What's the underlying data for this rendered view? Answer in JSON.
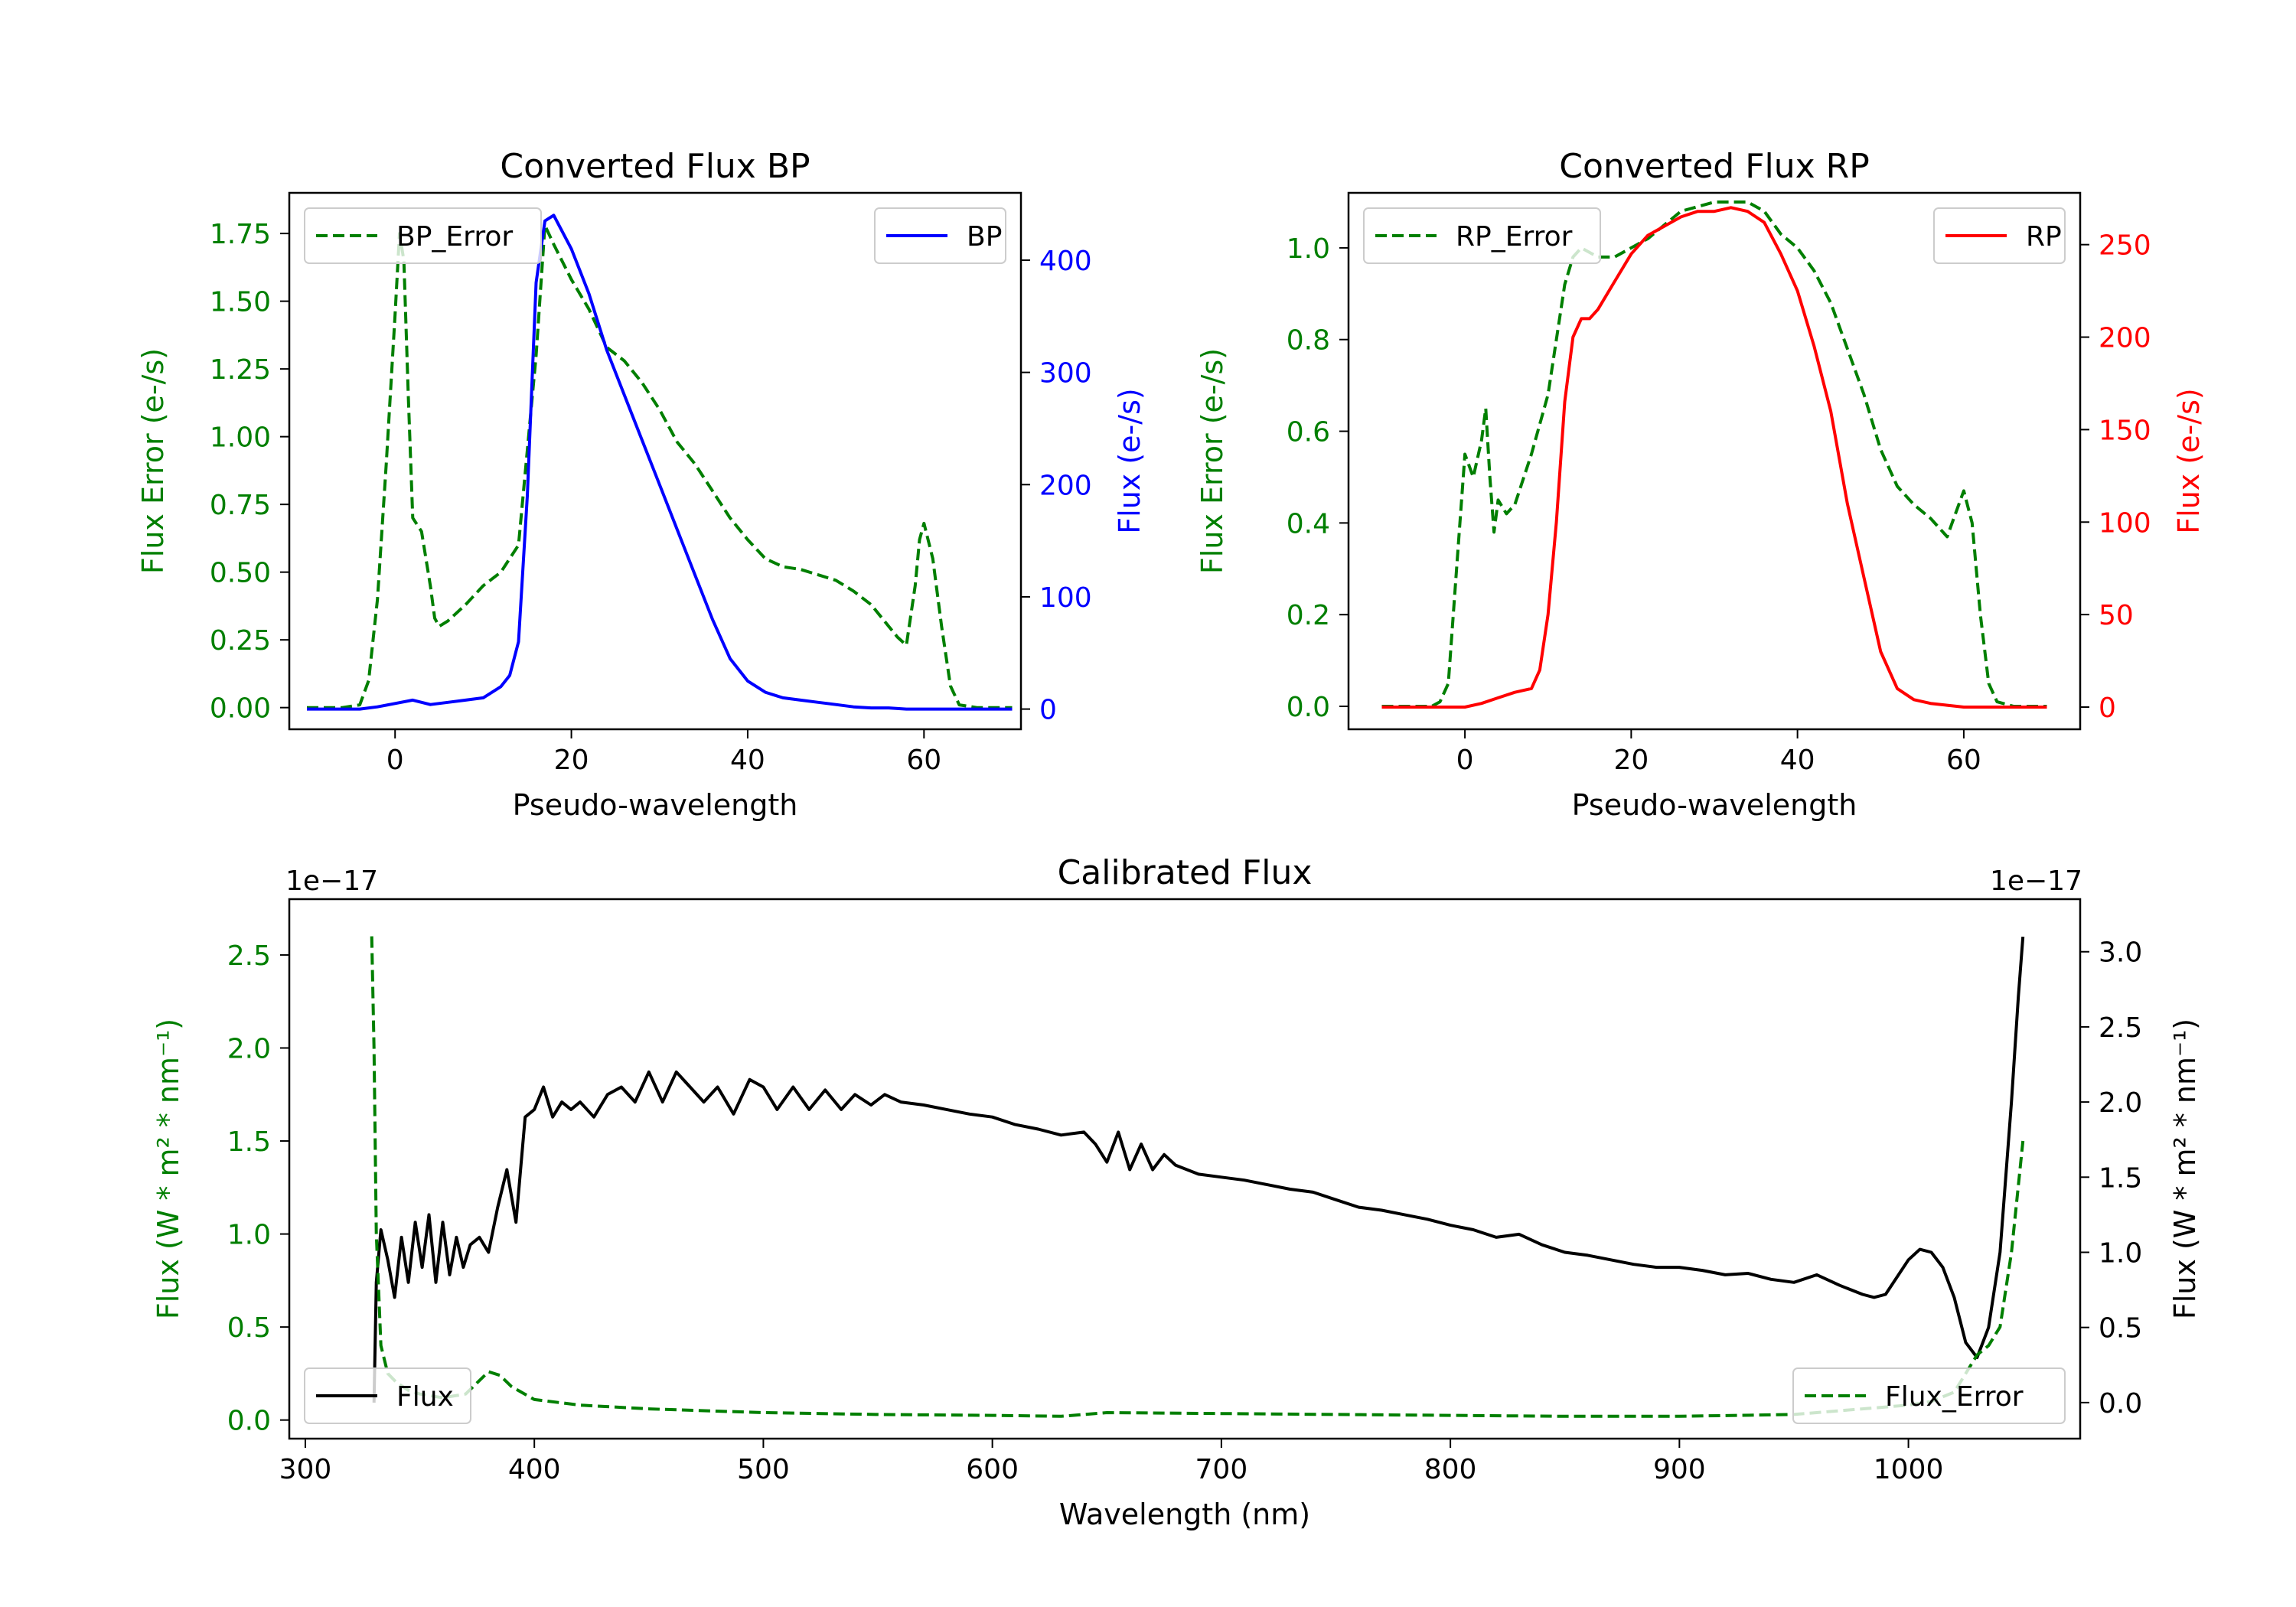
{
  "colors": {
    "green": "#007f00",
    "blue": "#0000ff",
    "red": "#ff0000",
    "black": "#000000"
  },
  "chart_data": [
    {
      "type": "line",
      "title": "Converted Flux BP",
      "xlabel": "Pseudo-wavelength",
      "ylabel_left": "Flux Error (e-/s)",
      "ylabel_right": "Flux (e-/s)",
      "xlim": [
        -12,
        71
      ],
      "ylim_left": [
        -0.08,
        1.9
      ],
      "ylim_right": [
        -18,
        460
      ],
      "x_ticks": [
        0,
        20,
        40,
        60
      ],
      "y_ticks_left": [
        0.0,
        0.25,
        0.5,
        0.75,
        1.0,
        1.25,
        1.5,
        1.75
      ],
      "y_ticks_left_labels": [
        "0.00",
        "0.25",
        "0.50",
        "0.75",
        "1.00",
        "1.25",
        "1.50",
        "1.75"
      ],
      "y_ticks_right": [
        0,
        100,
        200,
        300,
        400
      ],
      "y_ticks_right_labels": [
        "0",
        "100",
        "200",
        "300",
        "400"
      ],
      "legend_left": "top-left",
      "legend_right": "top-right",
      "series": [
        {
          "name": "BP_Error",
          "axis": "left",
          "style": "dashed",
          "color": "#007f00",
          "x": [
            -10,
            -6,
            -4,
            -3,
            -2,
            -1,
            0,
            0.5,
            1,
            1.5,
            2,
            3,
            4,
            4.5,
            5,
            6,
            7,
            8,
            10,
            12,
            14,
            16,
            17,
            18,
            20,
            22,
            24,
            26,
            28,
            30,
            32,
            34,
            36,
            38,
            40,
            42,
            44,
            46,
            48,
            50,
            52,
            54,
            56,
            57,
            58,
            59,
            59.5,
            60,
            61,
            62,
            63,
            64,
            66,
            70
          ],
          "y": [
            0,
            0,
            0.01,
            0.1,
            0.4,
            0.9,
            1.45,
            1.75,
            1.65,
            1.15,
            0.7,
            0.65,
            0.45,
            0.33,
            0.3,
            0.32,
            0.35,
            0.38,
            0.45,
            0.5,
            0.6,
            1.3,
            1.78,
            1.71,
            1.58,
            1.47,
            1.33,
            1.28,
            1.2,
            1.1,
            0.98,
            0.9,
            0.8,
            0.7,
            0.62,
            0.55,
            0.52,
            0.51,
            0.49,
            0.47,
            0.43,
            0.38,
            0.3,
            0.26,
            0.23,
            0.45,
            0.62,
            0.68,
            0.55,
            0.3,
            0.08,
            0.01,
            0,
            0
          ]
        },
        {
          "name": "BP",
          "axis": "right",
          "style": "solid",
          "color": "#0000ff",
          "x": [
            -10,
            -6,
            -4,
            -2,
            0,
            2,
            4,
            6,
            8,
            10,
            12,
            13,
            14,
            15,
            16,
            17,
            18,
            20,
            22,
            24,
            26,
            28,
            30,
            32,
            34,
            36,
            38,
            40,
            42,
            44,
            46,
            48,
            50,
            52,
            54,
            56,
            58,
            60,
            62,
            66,
            70
          ],
          "y": [
            0,
            0,
            0,
            2,
            5,
            8,
            4,
            6,
            8,
            10,
            20,
            30,
            60,
            190,
            380,
            435,
            440,
            410,
            370,
            320,
            280,
            240,
            200,
            160,
            120,
            80,
            45,
            25,
            15,
            10,
            8,
            6,
            4,
            2,
            1,
            1,
            0,
            0,
            0,
            0,
            0
          ]
        }
      ]
    },
    {
      "type": "line",
      "title": "Converted Flux RP",
      "xlabel": "Pseudo-wavelength",
      "ylabel_left": "Flux Error (e-/s)",
      "ylabel_right": "Flux (e-/s)",
      "xlim": [
        -14,
        74
      ],
      "ylim_left": [
        -0.05,
        1.12
      ],
      "ylim_right": [
        -12,
        278
      ],
      "x_ticks": [
        0,
        20,
        40,
        60
      ],
      "y_ticks_left": [
        0.0,
        0.2,
        0.4,
        0.6,
        0.8,
        1.0
      ],
      "y_ticks_left_labels": [
        "0.0",
        "0.2",
        "0.4",
        "0.6",
        "0.8",
        "1.0"
      ],
      "y_ticks_right": [
        0,
        50,
        100,
        150,
        200,
        250
      ],
      "y_ticks_right_labels": [
        "0",
        "50",
        "100",
        "150",
        "200",
        "250"
      ],
      "legend_left": "top-left",
      "legend_right": "top-right",
      "series": [
        {
          "name": "RP_Error",
          "axis": "left",
          "style": "dashed",
          "color": "#007f00",
          "x": [
            -10,
            -4,
            -3,
            -2,
            -1,
            0,
            1,
            2,
            2.5,
            3,
            3.5,
            4,
            5,
            6,
            8,
            10,
            12,
            13,
            14,
            16,
            18,
            20,
            22,
            24,
            26,
            28,
            30,
            32,
            34,
            36,
            38,
            40,
            42,
            44,
            46,
            48,
            50,
            52,
            54,
            56,
            57,
            58,
            59,
            60,
            61,
            62,
            63,
            64,
            66,
            70
          ],
          "y": [
            0,
            0,
            0.01,
            0.05,
            0.3,
            0.55,
            0.5,
            0.58,
            0.65,
            0.5,
            0.38,
            0.45,
            0.42,
            0.44,
            0.55,
            0.68,
            0.92,
            0.98,
            1.0,
            0.98,
            0.98,
            1.0,
            1.02,
            1.05,
            1.08,
            1.09,
            1.1,
            1.1,
            1.1,
            1.08,
            1.03,
            1.0,
            0.95,
            0.88,
            0.78,
            0.68,
            0.56,
            0.48,
            0.44,
            0.41,
            0.39,
            0.37,
            0.42,
            0.47,
            0.4,
            0.2,
            0.05,
            0.01,
            0,
            0
          ]
        },
        {
          "name": "RP",
          "axis": "right",
          "style": "solid",
          "color": "#ff0000",
          "x": [
            -10,
            -4,
            0,
            2,
            4,
            6,
            8,
            9,
            10,
            11,
            12,
            13,
            14,
            15,
            16,
            18,
            20,
            22,
            24,
            26,
            28,
            30,
            32,
            34,
            36,
            38,
            40,
            42,
            44,
            46,
            48,
            50,
            52,
            54,
            56,
            58,
            60,
            62,
            64,
            66,
            70
          ],
          "y": [
            0,
            0,
            0,
            2,
            5,
            8,
            10,
            20,
            50,
            100,
            165,
            200,
            210,
            210,
            215,
            230,
            245,
            255,
            260,
            265,
            268,
            268,
            270,
            268,
            262,
            245,
            225,
            195,
            160,
            110,
            70,
            30,
            10,
            4,
            2,
            1,
            0,
            0,
            0,
            0,
            0
          ]
        }
      ]
    },
    {
      "type": "line",
      "title": "Calibrated Flux",
      "xlabel": "Wavelength (nm)",
      "ylabel_left": "Flux (W * m² * nm⁻¹)",
      "ylabel_right": "Flux (W * m² * nm⁻¹)",
      "offset_left": "1e−17",
      "offset_right": "1e−17",
      "xlim": [
        293,
        1075
      ],
      "ylim_left": [
        -0.1,
        2.8
      ],
      "ylim_right": [
        -0.24,
        3.35
      ],
      "x_ticks": [
        300,
        400,
        500,
        600,
        700,
        800,
        900,
        1000
      ],
      "y_ticks_left": [
        0.0,
        0.5,
        1.0,
        1.5,
        2.0,
        2.5
      ],
      "y_ticks_left_labels": [
        "0.0",
        "0.5",
        "1.0",
        "1.5",
        "2.0",
        "2.5"
      ],
      "y_ticks_right": [
        0.0,
        0.5,
        1.0,
        1.5,
        2.0,
        2.5,
        3.0
      ],
      "y_ticks_right_labels": [
        "0.0",
        "0.5",
        "1.0",
        "1.5",
        "2.0",
        "2.5",
        "3.0"
      ],
      "legend_left": "bottom-left",
      "legend_right": "bottom-right",
      "series": [
        {
          "name": "Flux",
          "axis": "right",
          "style": "solid",
          "color": "#000000",
          "x": [
            330,
            331,
            333,
            336,
            339,
            342,
            345,
            348,
            351,
            354,
            357,
            360,
            363,
            366,
            369,
            372,
            376,
            380,
            384,
            388,
            392,
            396,
            400,
            404,
            408,
            412,
            416,
            420,
            426,
            432,
            438,
            444,
            450,
            456,
            462,
            468,
            474,
            480,
            487,
            494,
            500,
            506,
            513,
            520,
            527,
            534,
            540,
            547,
            553,
            560,
            570,
            580,
            590,
            600,
            610,
            620,
            630,
            640,
            645,
            650,
            655,
            660,
            665,
            670,
            675,
            680,
            690,
            700,
            710,
            720,
            730,
            740,
            750,
            760,
            770,
            780,
            790,
            800,
            810,
            820,
            830,
            840,
            850,
            860,
            870,
            880,
            890,
            900,
            910,
            920,
            930,
            940,
            950,
            960,
            970,
            980,
            985,
            990,
            1000,
            1005,
            1010,
            1015,
            1020,
            1025,
            1030,
            1035,
            1040,
            1045,
            1048,
            1050
          ],
          "y": [
            0,
            0.8,
            1.15,
            0.95,
            0.7,
            1.1,
            0.8,
            1.2,
            0.9,
            1.25,
            0.8,
            1.2,
            0.85,
            1.1,
            0.9,
            1.05,
            1.1,
            1.0,
            1.3,
            1.55,
            1.2,
            1.9,
            1.95,
            2.1,
            1.9,
            2.0,
            1.95,
            2.0,
            1.9,
            2.05,
            2.1,
            2.0,
            2.2,
            2.0,
            2.2,
            2.1,
            2.0,
            2.1,
            1.92,
            2.15,
            2.1,
            1.95,
            2.1,
            1.95,
            2.08,
            1.95,
            2.05,
            1.98,
            2.05,
            2.0,
            1.98,
            1.95,
            1.92,
            1.9,
            1.85,
            1.82,
            1.78,
            1.8,
            1.72,
            1.6,
            1.8,
            1.55,
            1.72,
            1.55,
            1.65,
            1.58,
            1.52,
            1.5,
            1.48,
            1.45,
            1.42,
            1.4,
            1.35,
            1.3,
            1.28,
            1.25,
            1.22,
            1.18,
            1.15,
            1.1,
            1.12,
            1.05,
            1.0,
            0.98,
            0.95,
            0.92,
            0.9,
            0.9,
            0.88,
            0.85,
            0.86,
            0.82,
            0.8,
            0.85,
            0.78,
            0.72,
            0.7,
            0.72,
            0.95,
            1.02,
            1.0,
            0.9,
            0.7,
            0.4,
            0.3,
            0.5,
            1.0,
            2.0,
            2.7,
            3.1
          ]
        },
        {
          "name": "Flux_Error",
          "axis": "left",
          "style": "dashed",
          "color": "#007f00",
          "x": [
            329,
            330,
            331,
            333,
            336,
            340,
            345,
            350,
            360,
            370,
            380,
            385,
            390,
            400,
            420,
            450,
            500,
            550,
            600,
            630,
            640,
            650,
            700,
            750,
            800,
            850,
            900,
            950,
            1000,
            1010,
            1020,
            1025,
            1030,
            1035,
            1040,
            1045,
            1050
          ],
          "y": [
            2.6,
            2.0,
            1.0,
            0.4,
            0.25,
            0.2,
            0.16,
            0.14,
            0.12,
            0.14,
            0.26,
            0.24,
            0.18,
            0.11,
            0.08,
            0.06,
            0.04,
            0.03,
            0.025,
            0.02,
            0.03,
            0.04,
            0.035,
            0.03,
            0.025,
            0.02,
            0.02,
            0.03,
            0.08,
            0.1,
            0.15,
            0.25,
            0.35,
            0.4,
            0.5,
            0.9,
            1.5
          ]
        }
      ]
    }
  ]
}
